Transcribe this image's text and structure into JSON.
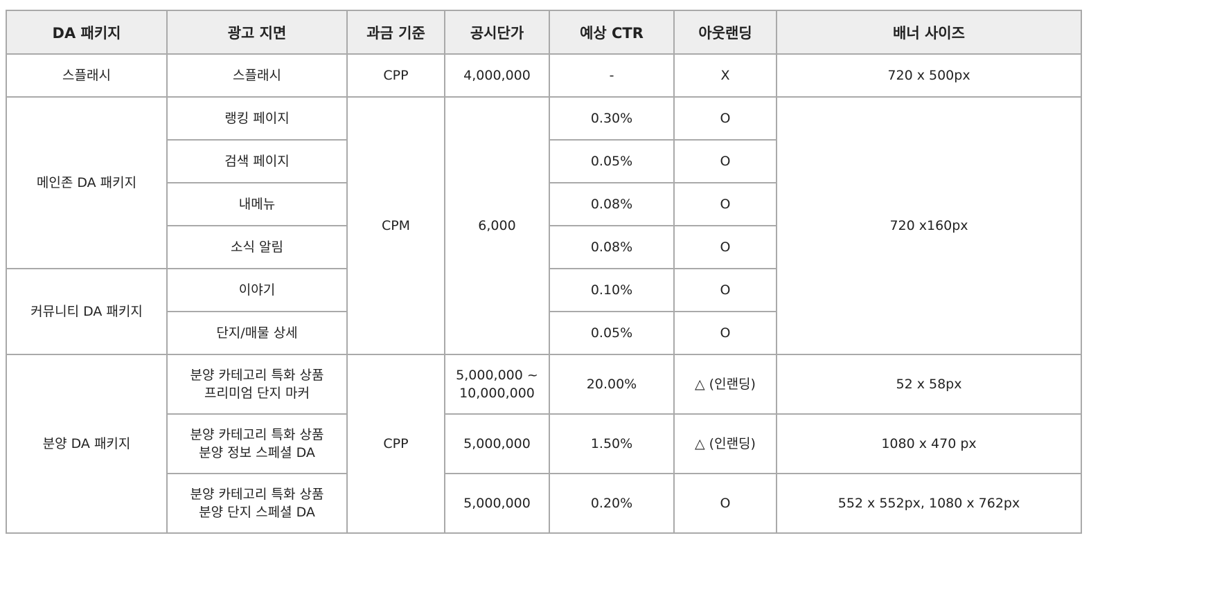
{
  "headers": [
    "DA 패키지",
    "광고 지면",
    "과금 기준",
    "공시단가",
    "예상 CTR",
    "아웃랜딩",
    "배너 사이즈"
  ],
  "splash": {
    "package": "스플래시",
    "placement": "스플래시",
    "billing": "CPP",
    "price": "4,000,000",
    "ctr": "-",
    "outlanding": "X",
    "banner": "720 x 500px"
  },
  "main_zone": {
    "package": "메인존 DA 패키지",
    "billing": "CPM",
    "price": "6,000",
    "banner": "720 x160px",
    "rows": [
      {
        "placement": "랭킹 페이지",
        "ctr": "0.30%",
        "outlanding": "O"
      },
      {
        "placement": "검색 페이지",
        "ctr": "0.05%",
        "outlanding": "O"
      },
      {
        "placement": "내메뉴",
        "ctr": "0.08%",
        "outlanding": "O"
      },
      {
        "placement": "소식 알림",
        "ctr": "0.08%",
        "outlanding": "O"
      }
    ]
  },
  "community": {
    "package": "커뮤니티 DA 패키지",
    "rows": [
      {
        "placement": "이야기",
        "ctr": "0.10%",
        "outlanding": "O"
      },
      {
        "placement": "단지/매물 상세",
        "ctr": "0.05%",
        "outlanding": "O"
      }
    ]
  },
  "presale": {
    "package": "분양 DA 패키지",
    "billing": "CPP",
    "rows": [
      {
        "placement_line1": "분양 카테고리 특화 상품",
        "placement_line2": "프리미엄 단지 마커",
        "price_line1": "5,000,000 ~",
        "price_line2": "10,000,000",
        "ctr": "20.00%",
        "outlanding": "△ (인랜딩)",
        "banner": "52 x 58px"
      },
      {
        "placement_line1": "분양 카테고리 특화 상품",
        "placement_line2": "분양 정보 스페셜 DA",
        "price": "5,000,000",
        "ctr": "1.50%",
        "outlanding": "△ (인랜딩)",
        "banner": "1080 x 470 px"
      },
      {
        "placement_line1": "분양 카테고리 특화 상품",
        "placement_line2": "분양 단지 스페셜 DA",
        "price": "5,000,000",
        "ctr": "0.20%",
        "outlanding": "O",
        "banner": "552 x 552px, 1080 x 762px"
      }
    ]
  }
}
